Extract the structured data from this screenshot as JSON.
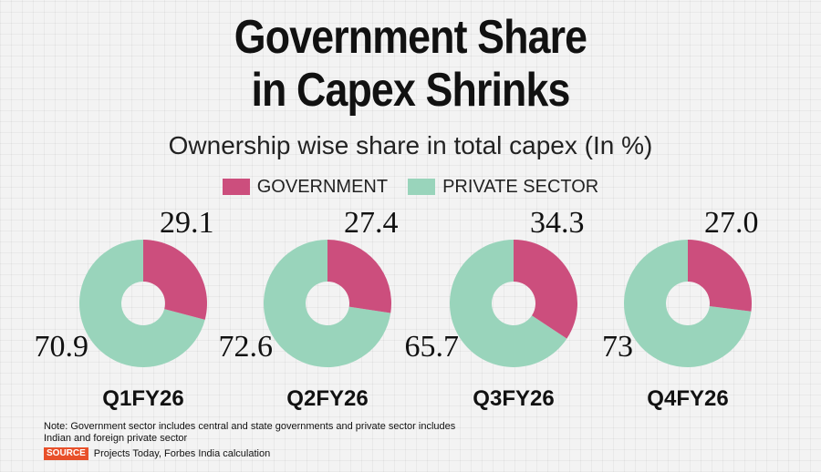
{
  "header": {
    "title_line1": "Government Share",
    "title_line2": "in Capex Shrinks",
    "subtitle": "Ownership wise share in total capex (In %)"
  },
  "legend": {
    "government": "GOVERNMENT",
    "private": "PRIVATE SECTOR"
  },
  "colors": {
    "government": "#cc4e7d",
    "private": "#99d4bb",
    "source_badge": "#e8502a"
  },
  "chart_data": {
    "type": "pie",
    "subtype": "donut",
    "series_names": [
      "GOVERNMENT",
      "PRIVATE SECTOR"
    ],
    "charts": [
      {
        "label": "Q1FY26",
        "government": 29.1,
        "private": 70.9,
        "government_label": "29.1",
        "private_label": "70.9"
      },
      {
        "label": "Q2FY26",
        "government": 27.4,
        "private": 72.6,
        "government_label": "27.4",
        "private_label": "72.6"
      },
      {
        "label": "Q3FY26",
        "government": 34.3,
        "private": 65.7,
        "government_label": "34.3",
        "private_label": "65.7"
      },
      {
        "label": "Q4FY26",
        "government": 27.0,
        "private": 73,
        "government_label": "27.0",
        "private_label": "73"
      }
    ]
  },
  "footer": {
    "note": "Note: Government sector includes central and state governments and private sector includes Indian and foreign private sector",
    "source_badge": "SOURCE",
    "source_text": "Projects Today, Forbes India calculation"
  }
}
